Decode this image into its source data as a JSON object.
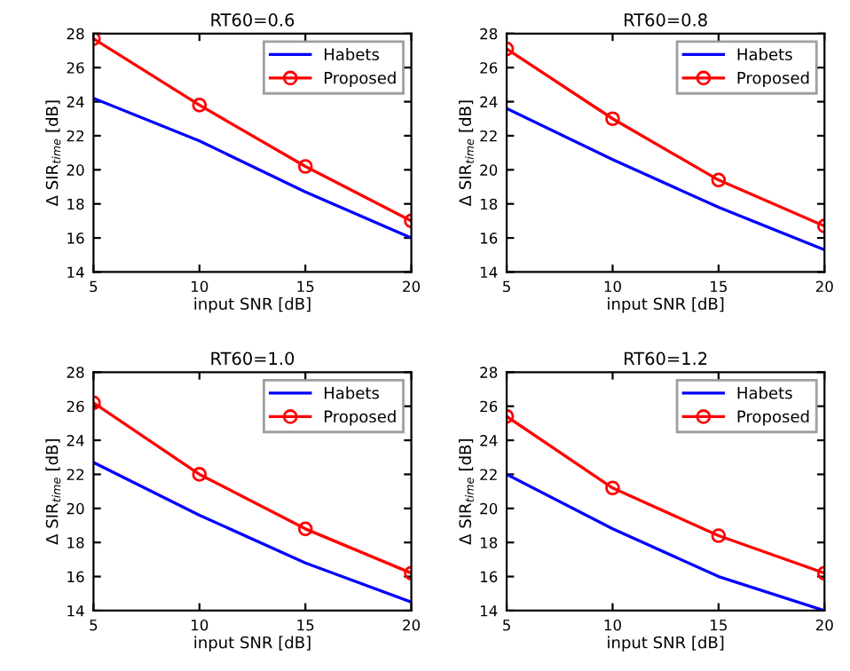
{
  "chart_data": [
    {
      "type": "line",
      "title": "RT60=0.6",
      "xlabel": "input SNR [dB]",
      "ylabel": "Δ SIR$_{time}$ [dB]",
      "x": [
        5,
        10,
        15,
        20
      ],
      "xlim": [
        5,
        20
      ],
      "xticks": [
        5,
        10,
        15,
        20
      ],
      "ylim": [
        14,
        28
      ],
      "yticks": [
        14,
        16,
        18,
        20,
        22,
        24,
        26,
        28
      ],
      "legend": "top right",
      "grid": false,
      "series": [
        {
          "name": "Habets",
          "color": "#0000ff",
          "marker": "none",
          "values": [
            24.2,
            21.7,
            18.7,
            16.0
          ]
        },
        {
          "name": "Proposed",
          "color": "#ff0000",
          "marker": "circle",
          "values": [
            27.7,
            23.8,
            20.2,
            17.0
          ]
        }
      ]
    },
    {
      "type": "line",
      "title": "RT60=0.8",
      "xlabel": "input SNR [dB]",
      "ylabel": "Δ SIR$_{time}$ [dB]",
      "x": [
        5,
        10,
        15,
        20
      ],
      "xlim": [
        5,
        20
      ],
      "xticks": [
        5,
        10,
        15,
        20
      ],
      "ylim": [
        14,
        28
      ],
      "yticks": [
        14,
        16,
        18,
        20,
        22,
        24,
        26,
        28
      ],
      "legend": "top right",
      "grid": false,
      "series": [
        {
          "name": "Habets",
          "color": "#0000ff",
          "marker": "none",
          "values": [
            23.6,
            20.6,
            17.8,
            15.3
          ]
        },
        {
          "name": "Proposed",
          "color": "#ff0000",
          "marker": "circle",
          "values": [
            27.1,
            23.0,
            19.4,
            16.7
          ]
        }
      ]
    },
    {
      "type": "line",
      "title": "RT60=1.0",
      "xlabel": "input SNR [dB]",
      "ylabel": "Δ SIR$_{time}$ [dB]",
      "x": [
        5,
        10,
        15,
        20
      ],
      "xlim": [
        5,
        20
      ],
      "xticks": [
        5,
        10,
        15,
        20
      ],
      "ylim": [
        14,
        28
      ],
      "yticks": [
        14,
        16,
        18,
        20,
        22,
        24,
        26,
        28
      ],
      "legend": "top right",
      "grid": false,
      "series": [
        {
          "name": "Habets",
          "color": "#0000ff",
          "marker": "none",
          "values": [
            22.7,
            19.6,
            16.8,
            14.5
          ]
        },
        {
          "name": "Proposed",
          "color": "#ff0000",
          "marker": "circle",
          "values": [
            26.2,
            22.0,
            18.8,
            16.2
          ]
        }
      ]
    },
    {
      "type": "line",
      "title": "RT60=1.2",
      "xlabel": "input SNR [dB]",
      "ylabel": "Δ SIR$_{time}$ [dB]",
      "x": [
        5,
        10,
        15,
        20
      ],
      "xlim": [
        5,
        20
      ],
      "xticks": [
        5,
        10,
        15,
        20
      ],
      "ylim": [
        14,
        28
      ],
      "yticks": [
        14,
        16,
        18,
        20,
        22,
        24,
        26,
        28
      ],
      "legend": "top right",
      "grid": false,
      "series": [
        {
          "name": "Habets",
          "color": "#0000ff",
          "marker": "none",
          "values": [
            22.0,
            18.8,
            16.0,
            14.0
          ]
        },
        {
          "name": "Proposed",
          "color": "#ff0000",
          "marker": "circle",
          "values": [
            25.4,
            21.2,
            18.4,
            16.2
          ]
        }
      ]
    }
  ]
}
